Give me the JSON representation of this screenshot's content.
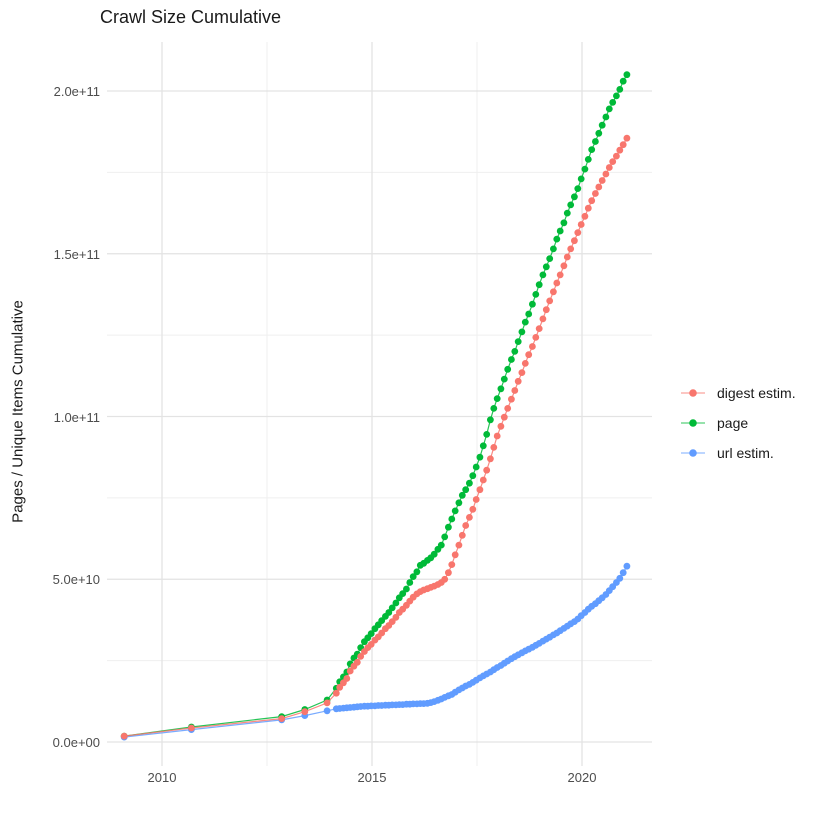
{
  "title": "Crawl Size Cumulative",
  "y_axis": {
    "label": "Pages / Unique Items Cumulative",
    "ticks": [
      "0.0e+00",
      "5.0e+10",
      "1.0e+11",
      "1.5e+11",
      "2.0e+11"
    ]
  },
  "x_axis": {
    "ticks": [
      "2010",
      "2015",
      "2020"
    ]
  },
  "legend": {
    "items": [
      {
        "label": "digest estim.",
        "color": "#F8766D"
      },
      {
        "label": "page",
        "color": "#00BA38"
      },
      {
        "label": "url estim.",
        "color": "#619CFF"
      }
    ]
  },
  "colors": {
    "grid_major": "#e3e3e3",
    "grid_minor": "#efefef",
    "tick_label": "#4d4d4d",
    "text": "#1a1a1a"
  },
  "chart_data": {
    "type": "scatter",
    "title": "Crawl Size Cumulative",
    "xlabel": "",
    "ylabel": "Pages / Unique Items Cumulative",
    "legend_position": "right",
    "grid": true,
    "xlim": [
      2008.7,
      2021.7
    ],
    "ylim": [
      0,
      215000000000
    ],
    "x_major_ticks": [
      2010,
      2015,
      2020
    ],
    "x_minor_ticks": [
      2012.5,
      2017.5
    ],
    "y_major_ticks_billions": [
      0,
      50,
      100,
      150,
      200
    ],
    "y_minor_ticks_billions": [
      25,
      75,
      125,
      175
    ],
    "x_years": [
      2009.1,
      2010.7,
      2012.85,
      2013.4,
      2013.93,
      2014.15,
      2014.23,
      2014.32,
      2014.4,
      2014.48,
      2014.57,
      2014.65,
      2014.73,
      2014.82,
      2014.9,
      2014.98,
      2015.07,
      2015.15,
      2015.23,
      2015.32,
      2015.4,
      2015.48,
      2015.57,
      2015.65,
      2015.73,
      2015.82,
      2015.9,
      2015.98,
      2016.07,
      2016.15,
      2016.23,
      2016.32,
      2016.4,
      2016.48,
      2016.57,
      2016.65,
      2016.73,
      2016.82,
      2016.9,
      2016.98,
      2017.07,
      2017.15,
      2017.23,
      2017.32,
      2017.4,
      2017.48,
      2017.57,
      2017.65,
      2017.73,
      2017.82,
      2017.9,
      2017.98,
      2018.07,
      2018.15,
      2018.23,
      2018.32,
      2018.4,
      2018.48,
      2018.57,
      2018.65,
      2018.73,
      2018.82,
      2018.9,
      2018.98,
      2019.07,
      2019.15,
      2019.23,
      2019.32,
      2019.4,
      2019.48,
      2019.57,
      2019.65,
      2019.73,
      2019.82,
      2019.9,
      2019.98,
      2020.07,
      2020.15,
      2020.23,
      2020.32,
      2020.4,
      2020.48,
      2020.57,
      2020.65,
      2020.73,
      2020.82,
      2020.9,
      2020.98,
      2021.07
    ],
    "series": [
      {
        "name": "page",
        "color": "#00BA38",
        "values_billions": [
          1.8,
          4.6,
          7.8,
          10,
          12.9,
          16.5,
          18.5,
          20,
          21.5,
          24,
          25.8,
          27,
          29,
          30.8,
          32,
          33.3,
          34.8,
          36,
          37.3,
          38.6,
          39.8,
          41.2,
          42.7,
          44.3,
          45.6,
          47,
          49,
          50.8,
          52.3,
          54.3,
          54.9,
          55.8,
          56.6,
          57.7,
          59.2,
          60.5,
          63,
          66,
          68.5,
          71,
          73.5,
          75.8,
          77.5,
          79.5,
          81.8,
          84.5,
          87.5,
          91,
          94.5,
          99,
          102.5,
          105.5,
          108.5,
          111.5,
          114.5,
          117.5,
          120,
          123,
          126,
          129,
          131.5,
          134.5,
          137.5,
          140.5,
          143.5,
          146,
          148.5,
          151.5,
          154.5,
          157,
          159.5,
          162.5,
          165,
          167.5,
          170,
          173,
          176,
          179,
          182,
          184.5,
          187,
          189.5,
          192,
          194.5,
          196.5,
          198.5,
          200.5,
          203,
          205
        ]
      },
      {
        "name": "url estim.",
        "color": "#619CFF",
        "values_billions": [
          1.5,
          3.8,
          6.8,
          8.1,
          9.6,
          10.2,
          10.3,
          10.4,
          10.5,
          10.6,
          10.7,
          10.8,
          10.9,
          11,
          11,
          11.1,
          11.1,
          11.2,
          11.2,
          11.3,
          11.3,
          11.4,
          11.4,
          11.5,
          11.5,
          11.6,
          11.6,
          11.7,
          11.7,
          11.8,
          11.8,
          11.9,
          12.1,
          12.4,
          12.8,
          13.2,
          13.7,
          14.2,
          14.6,
          15.3,
          16,
          16.6,
          17.2,
          17.7,
          18.3,
          19,
          19.7,
          20.3,
          20.9,
          21.5,
          22.2,
          22.9,
          23.5,
          24.2,
          24.9,
          25.6,
          26.2,
          26.8,
          27.4,
          28,
          28.5,
          29.1,
          29.7,
          30.3,
          31,
          31.6,
          32.2,
          32.9,
          33.5,
          34.2,
          34.9,
          35.6,
          36.3,
          37,
          37.8,
          38.8,
          39.8,
          40.8,
          41.7,
          42.5,
          43.4,
          44.3,
          45.3,
          46.5,
          47.7,
          49,
          50.3,
          52,
          54
        ]
      },
      {
        "name": "digest estim.",
        "color": "#F8766D",
        "values_billions": [
          1.8,
          4.3,
          7.2,
          9.3,
          12,
          15,
          16.8,
          18.2,
          19.5,
          21.8,
          23.3,
          24.5,
          26.3,
          27.8,
          29,
          30,
          31.3,
          32.3,
          33.5,
          34.8,
          35.8,
          37,
          38.3,
          39.8,
          40.8,
          42,
          43.3,
          44.5,
          45.5,
          46.2,
          46.7,
          47.1,
          47.5,
          47.9,
          48.4,
          49,
          50,
          52,
          54.5,
          57.5,
          60.5,
          63.5,
          66.5,
          69,
          71.5,
          74.5,
          77.5,
          80.5,
          83.5,
          87,
          90.5,
          94,
          97,
          99.8,
          102.5,
          105.3,
          108,
          110.8,
          113.5,
          116.3,
          119,
          121.5,
          124.3,
          127,
          130,
          132.8,
          135.5,
          138.3,
          141,
          143.5,
          146.3,
          149,
          151.5,
          154,
          156.5,
          159,
          161.5,
          164,
          166.3,
          168.5,
          170.5,
          172.5,
          174.5,
          176.5,
          178.3,
          180,
          181.8,
          183.5,
          185.5
        ]
      }
    ]
  }
}
